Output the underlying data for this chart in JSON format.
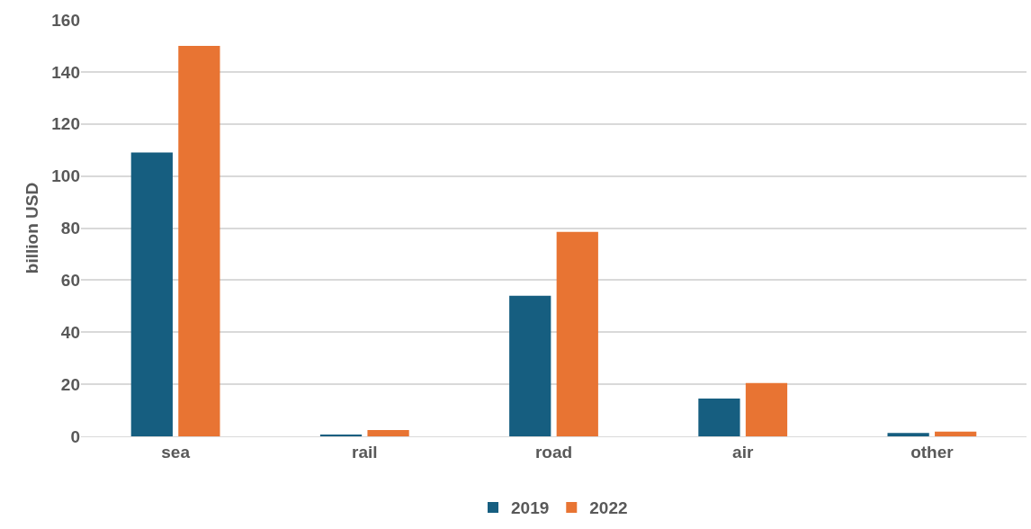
{
  "chart_data": {
    "type": "bar",
    "ylabel": "billion USD",
    "categories": [
      "sea",
      "rail",
      "road",
      "air",
      "other"
    ],
    "series": [
      {
        "name": "2019",
        "color": "#165e80",
        "values": [
          109,
          0.7,
          54,
          14.5,
          1.3
        ]
      },
      {
        "name": "2022",
        "color": "#e87433",
        "values": [
          150,
          2.4,
          78.5,
          20.5,
          1.8
        ]
      }
    ],
    "ylim": [
      0,
      160
    ],
    "yticks": [
      0,
      20,
      40,
      60,
      80,
      100,
      120,
      140,
      160
    ],
    "grid": "y",
    "legend": "bottom"
  }
}
